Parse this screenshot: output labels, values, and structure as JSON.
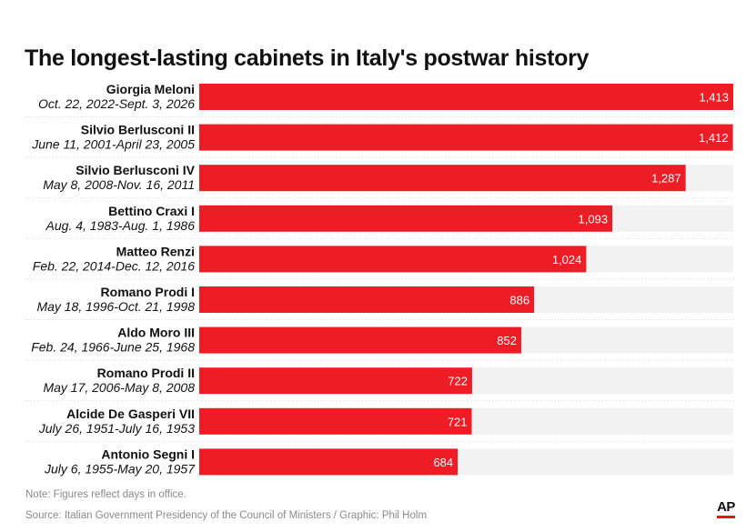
{
  "title": "The longest-lasting cabinets in Italy's postwar history",
  "note": "Note: Figures reflect days in office.",
  "source": "Source: Italian Government Presidency of the Council of Ministers / Graphic: Phil Holm",
  "logo_text": "AP",
  "colors": {
    "bar": "#ee1c24",
    "track": "#f2f2f2",
    "divider": "#d9d9d9",
    "accent": "#e8131b"
  },
  "chart_data": {
    "type": "bar",
    "orientation": "horizontal",
    "title": "The longest-lasting cabinets in Italy's postwar history",
    "xlim": [
      0,
      1413
    ],
    "grid": false,
    "legend": "none",
    "categories": [
      {
        "name": "Giorgia Meloni",
        "dates": "Oct. 22, 2022-Sept. 3, 2026"
      },
      {
        "name": "Silvio Berlusconi II",
        "dates": "June 11, 2001-April 23, 2005"
      },
      {
        "name": "Silvio Berlusconi IV",
        "dates": "May 8, 2008-Nov. 16, 2011"
      },
      {
        "name": "Bettino Craxi I",
        "dates": "Aug. 4, 1983-Aug. 1, 1986"
      },
      {
        "name": "Matteo Renzi",
        "dates": "Feb. 22, 2014-Dec. 12, 2016"
      },
      {
        "name": "Romano Prodi I",
        "dates": "May 18, 1996-Oct. 21, 1998"
      },
      {
        "name": "Aldo Moro III",
        "dates": "Feb. 24, 1966-June 25, 1968"
      },
      {
        "name": "Romano Prodi II",
        "dates": "May 17, 2006-May 8, 2008"
      },
      {
        "name": "Alcide De Gasperi VII",
        "dates": "July 26, 1951-July 16, 1953"
      },
      {
        "name": "Antonio Segni I",
        "dates": "July 6, 1955-May 20, 1957"
      }
    ],
    "values": [
      1413,
      1412,
      1287,
      1093,
      1024,
      886,
      852,
      722,
      721,
      684
    ],
    "value_labels": [
      "1,413",
      "1,412",
      "1,287",
      "1,093",
      "1,024",
      "886",
      "852",
      "722",
      "721",
      "684"
    ]
  }
}
